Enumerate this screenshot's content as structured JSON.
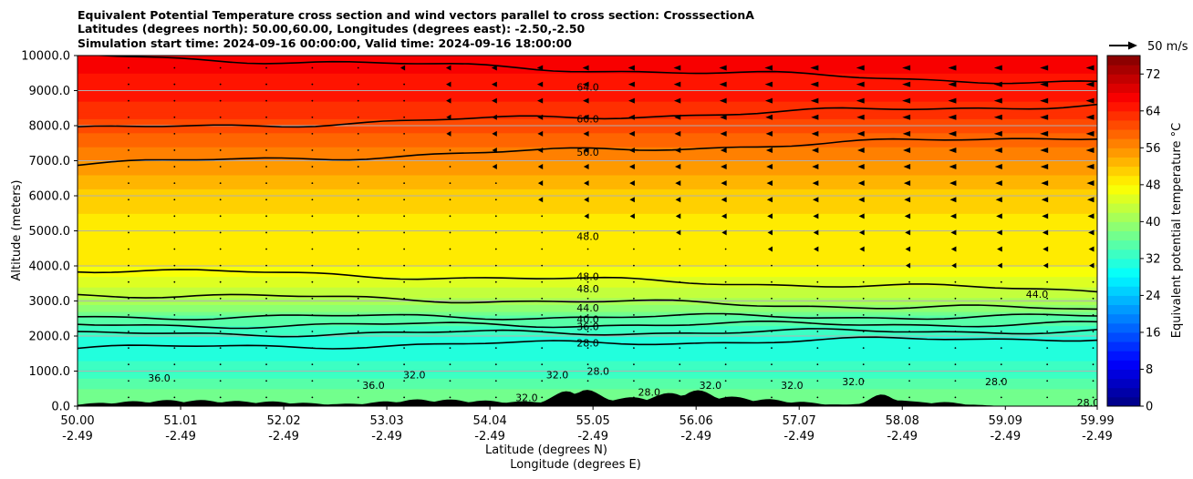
{
  "chart_data": {
    "type": "heatmap",
    "title_lines": [
      "Equivalent Potential Temperature cross section and wind vectors parallel to cross section: CrosssectionA",
      "Latitudes (degrees north): 50.00,60.00, Longitudes (degrees east): -2.50,-2.50",
      "Simulation start time: 2024-09-16 00:00:00, Valid time: 2024-09-16 18:00:00"
    ],
    "ylabel": "Altitude (meters)",
    "xlabel_lines": [
      "Latitude (degrees N)",
      "Longitude (degrees E)"
    ],
    "xlim": [
      50.0,
      59.99
    ],
    "ylim": [
      0,
      10000
    ],
    "x_ticks": [
      {
        "lat": "50.00",
        "lon": "-2.49",
        "value": 50.0
      },
      {
        "lat": "51.01",
        "lon": "-2.49",
        "value": 51.01
      },
      {
        "lat": "52.02",
        "lon": "-2.49",
        "value": 52.02
      },
      {
        "lat": "53.03",
        "lon": "-2.49",
        "value": 53.03
      },
      {
        "lat": "54.04",
        "lon": "-2.49",
        "value": 54.04
      },
      {
        "lat": "55.05",
        "lon": "-2.49",
        "value": 55.05
      },
      {
        "lat": "56.06",
        "lon": "-2.49",
        "value": 56.06
      },
      {
        "lat": "57.07",
        "lon": "-2.49",
        "value": 57.07
      },
      {
        "lat": "58.08",
        "lon": "-2.49",
        "value": 58.08
      },
      {
        "lat": "59.09",
        "lon": "-2.49",
        "value": 59.09
      },
      {
        "lat": "59.99",
        "lon": "-2.49",
        "value": 59.99
      }
    ],
    "y_ticks": [
      {
        "label": "0.0",
        "value": 0
      },
      {
        "label": "1000.0",
        "value": 1000
      },
      {
        "label": "2000.0",
        "value": 2000
      },
      {
        "label": "3000.0",
        "value": 3000
      },
      {
        "label": "4000.0",
        "value": 4000
      },
      {
        "label": "5000.0",
        "value": 5000
      },
      {
        "label": "6000.0",
        "value": 6000
      },
      {
        "label": "7000.0",
        "value": 7000
      },
      {
        "label": "8000.0",
        "value": 8000
      },
      {
        "label": "9000.0",
        "value": 9000
      },
      {
        "label": "10000.0",
        "value": 10000
      }
    ],
    "colorbar": {
      "label": "Equivalent potential temperature °C",
      "min": 0,
      "max": 76,
      "step": 2,
      "ticks": [
        0,
        8,
        16,
        24,
        32,
        40,
        48,
        56,
        64,
        72
      ],
      "tick_labels": [
        "0",
        "8",
        "16",
        "24",
        "32",
        "40",
        "48",
        "56",
        "64",
        "72"
      ]
    },
    "vector_key": {
      "label": "50 m/s",
      "speed": 50
    },
    "field_profile": [
      {
        "alt": 0,
        "value": 37
      },
      {
        "alt": 500,
        "value": 36
      },
      {
        "alt": 1000,
        "value": 33
      },
      {
        "alt": 1500,
        "value": 31
      },
      {
        "alt": 2000,
        "value": 32
      },
      {
        "alt": 2500,
        "value": 35
      },
      {
        "alt": 3000,
        "value": 41
      },
      {
        "alt": 3500,
        "value": 45
      },
      {
        "alt": 4000,
        "value": 48
      },
      {
        "alt": 5000,
        "value": 49
      },
      {
        "alt": 6000,
        "value": 51
      },
      {
        "alt": 7000,
        "value": 56
      },
      {
        "alt": 8000,
        "value": 61
      },
      {
        "alt": 9000,
        "value": 65
      },
      {
        "alt": 10000,
        "value": 67
      }
    ],
    "contours": [
      {
        "value": 28,
        "alt_start": 1650,
        "alt_end": 1950
      },
      {
        "value": 32,
        "alt_start": 2050,
        "alt_end": 2150
      },
      {
        "value": 36,
        "alt_start": 2300,
        "alt_end": 2350
      },
      {
        "value": 40,
        "alt_start": 2550,
        "alt_end": 2550
      },
      {
        "value": 44,
        "alt_start": 3200,
        "alt_end": 2750
      },
      {
        "value": 48,
        "alt_start": 3900,
        "alt_end": 3300
      },
      {
        "value": 56,
        "alt_start": 6900,
        "alt_end": 7700
      },
      {
        "value": 60,
        "alt_start": 7900,
        "alt_end": 8600
      },
      {
        "value": 64,
        "alt_start": 10000,
        "alt_end": 9200
      }
    ],
    "contour_labels": [
      {
        "text": "64.0",
        "lat": 55.0,
        "alt": 9100
      },
      {
        "text": "60.0",
        "lat": 55.0,
        "alt": 8200
      },
      {
        "text": "56.0",
        "lat": 55.0,
        "alt": 7250
      },
      {
        "text": "48.0",
        "lat": 55.0,
        "alt": 4850
      },
      {
        "text": "48.0",
        "lat": 55.0,
        "alt": 3700
      },
      {
        "text": "48.0",
        "lat": 55.0,
        "alt": 3350
      },
      {
        "text": "44.0",
        "lat": 55.0,
        "alt": 2800
      },
      {
        "text": "40.0",
        "lat": 55.0,
        "alt": 2480
      },
      {
        "text": "36.0",
        "lat": 55.0,
        "alt": 2270
      },
      {
        "text": "28.0",
        "lat": 55.0,
        "alt": 1800
      },
      {
        "text": "44.0",
        "lat": 59.4,
        "alt": 3200
      },
      {
        "text": "36.0",
        "lat": 50.8,
        "alt": 800
      },
      {
        "text": "36.0",
        "lat": 52.9,
        "alt": 600
      },
      {
        "text": "32.0",
        "lat": 53.3,
        "alt": 900
      },
      {
        "text": "32.0",
        "lat": 54.4,
        "alt": 250
      },
      {
        "text": "32.0",
        "lat": 54.7,
        "alt": 900
      },
      {
        "text": "28.0",
        "lat": 55.1,
        "alt": 1000
      },
      {
        "text": "28.0",
        "lat": 55.6,
        "alt": 400
      },
      {
        "text": "32.0",
        "lat": 56.2,
        "alt": 600
      },
      {
        "text": "32.0",
        "lat": 57.0,
        "alt": 600
      },
      {
        "text": "32.0",
        "lat": 57.6,
        "alt": 700
      },
      {
        "text": "28.0",
        "lat": 59.0,
        "alt": 700
      },
      {
        "text": "28.0",
        "lat": 59.9,
        "alt": 100
      }
    ],
    "wind_vectors": "mostly near-zero in lower/middle layers; westward (leftward) arrows in upper levels toward the northern end"
  }
}
